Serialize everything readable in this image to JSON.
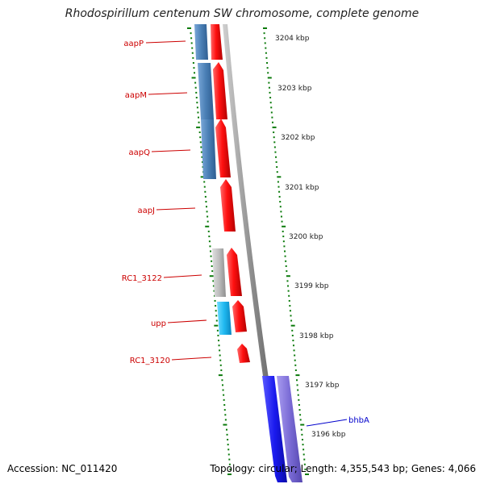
{
  "title": "Rhodospirillum centenum SW chromosome, complete genome",
  "accession": "Accession: NC_011420",
  "summary": "Topology: circular; Length: 4,355,543 bp; Genes: 4,066",
  "ruler": [
    "3204 kbp",
    "3203 kbp",
    "3202 kbp",
    "3201 kbp",
    "3200 kbp",
    "3199 kbp",
    "3198 kbp",
    "3197 kbp",
    "3196 kbp"
  ],
  "genes": [
    {
      "name": "aapP",
      "color": "#cc0000"
    },
    {
      "name": "aapM",
      "color": "#cc0000"
    },
    {
      "name": "aapQ",
      "color": "#cc0000"
    },
    {
      "name": "aapJ",
      "color": "#cc0000"
    },
    {
      "name": "RC1_3122",
      "color": "#cc0000"
    },
    {
      "name": "upp",
      "color": "#cc0000"
    },
    {
      "name": "RC1_3120",
      "color": "#cc0000"
    },
    {
      "name": "bhbA",
      "color": "#0000cc"
    }
  ],
  "colors": {
    "cds": "#ff1a1a",
    "feature_blue": "#4a7fb5",
    "feature_gray": "#b5b5b5",
    "feature_cyan": "#1fb8f0",
    "feature_royal": "#1a1aee",
    "feature_purple": "#7b6cd6",
    "tick": "#0a7a0a",
    "backbone": "#888888"
  }
}
